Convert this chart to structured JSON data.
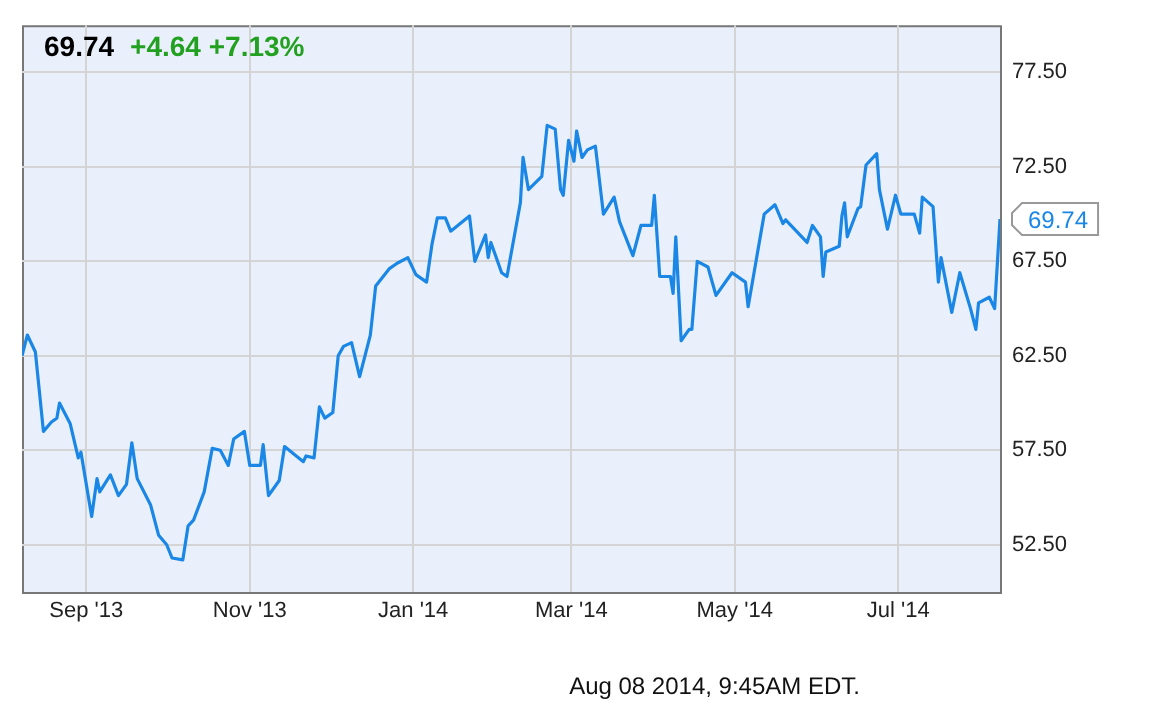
{
  "chart_data": {
    "type": "line",
    "title": "69.74",
    "subtitle": "+4.64 +7.13%",
    "xlim": [
      "2013-08-08",
      "2014-08-08"
    ],
    "xticks": [
      {
        "value": "2013-09-01",
        "label": "Sep '13"
      },
      {
        "value": "2013-11-01",
        "label": "Nov '13"
      },
      {
        "value": "2014-01-01",
        "label": "Jan '14"
      },
      {
        "value": "2014-03-01",
        "label": "Mar '14"
      },
      {
        "value": "2014-05-01",
        "label": "May '14"
      },
      {
        "value": "2014-07-01",
        "label": "Jul '14"
      }
    ],
    "ylim": [
      50,
      80
    ],
    "yticks": [
      {
        "value": 52.5,
        "label": "52.50"
      },
      {
        "value": 57.5,
        "label": "57.50"
      },
      {
        "value": 62.5,
        "label": "62.50"
      },
      {
        "value": 67.5,
        "label": "67.50"
      },
      {
        "value": 72.5,
        "label": "72.50"
      },
      {
        "value": 77.5,
        "label": "77.50"
      }
    ],
    "grid": true,
    "marker": "none",
    "line_style": "solid",
    "annotations": [
      {
        "text": "69.74",
        "x": "2014-08-08",
        "y": 69.74
      },
      "Aug 08 2014, 9:45AM EDT."
    ],
    "series": [
      {
        "color": "#1a87e6",
        "x": [
          "2013-08-08",
          "2013-08-10",
          "2013-08-13",
          "2013-08-16",
          "2013-08-19",
          "2013-08-21",
          "2013-08-22",
          "2013-08-26",
          "2013-08-29",
          "2013-08-30",
          "2013-09-03",
          "2013-09-05",
          "2013-09-06",
          "2013-09-10",
          "2013-09-13",
          "2013-09-16",
          "2013-09-18",
          "2013-09-20",
          "2013-09-25",
          "2013-09-28",
          "2013-10-01",
          "2013-10-03",
          "2013-10-07",
          "2013-10-09",
          "2013-10-11",
          "2013-10-15",
          "2013-10-18",
          "2013-10-21",
          "2013-10-24",
          "2013-10-26",
          "2013-10-30",
          "2013-11-01",
          "2013-11-05",
          "2013-11-06",
          "2013-11-08",
          "2013-11-12",
          "2013-11-14",
          "2013-11-21",
          "2013-11-22",
          "2013-11-25",
          "2013-11-27",
          "2013-11-29",
          "2013-12-02",
          "2013-12-04",
          "2013-12-06",
          "2013-12-09",
          "2013-12-12",
          "2013-12-16",
          "2013-12-18",
          "2013-12-23",
          "2013-12-26",
          "2013-12-30",
          "2014-01-02",
          "2014-01-06",
          "2014-01-08",
          "2014-01-10",
          "2014-01-13",
          "2014-01-15",
          "2014-01-22",
          "2014-01-24",
          "2014-01-28",
          "2014-01-29",
          "2014-01-30",
          "2014-02-03",
          "2014-02-05",
          "2014-02-10",
          "2014-02-11",
          "2014-02-13",
          "2014-02-18",
          "2014-02-20",
          "2014-02-23",
          "2014-02-25",
          "2014-02-26",
          "2014-02-28",
          "2014-03-02",
          "2014-03-03",
          "2014-03-05",
          "2014-03-07",
          "2014-03-10",
          "2014-03-13",
          "2014-03-17",
          "2014-03-19",
          "2014-03-24",
          "2014-03-27",
          "2014-03-31",
          "2014-04-01",
          "2014-04-03",
          "2014-04-07",
          "2014-04-08",
          "2014-04-09",
          "2014-04-11",
          "2014-04-14",
          "2014-04-15",
          "2014-04-17",
          "2014-04-21",
          "2014-04-24",
          "2014-04-28",
          "2014-04-30",
          "2014-05-05",
          "2014-05-06",
          "2014-05-12",
          "2014-05-16",
          "2014-05-19",
          "2014-05-20",
          "2014-05-28",
          "2014-05-30",
          "2014-06-02",
          "2014-06-03",
          "2014-06-04",
          "2014-06-09",
          "2014-06-10",
          "2014-06-11",
          "2014-06-12",
          "2014-06-16",
          "2014-06-17",
          "2014-06-19",
          "2014-06-23",
          "2014-06-24",
          "2014-06-27",
          "2014-06-30",
          "2014-07-02",
          "2014-07-07",
          "2014-07-09",
          "2014-07-10",
          "2014-07-14",
          "2014-07-16",
          "2014-07-17",
          "2014-07-21",
          "2014-07-24",
          "2014-07-28",
          "2014-07-30",
          "2014-07-31",
          "2014-08-04",
          "2014-08-06",
          "2014-08-08"
        ],
        "values": [
          62.5,
          63.6,
          62.7,
          58.5,
          59.0,
          59.2,
          60.0,
          58.9,
          57.1,
          57.4,
          54.0,
          56.0,
          55.3,
          56.2,
          55.1,
          55.7,
          57.9,
          56.0,
          54.6,
          53.0,
          52.5,
          51.8,
          51.7,
          53.5,
          53.8,
          55.3,
          57.6,
          57.5,
          56.7,
          58.1,
          58.5,
          56.7,
          56.7,
          57.8,
          55.1,
          55.9,
          57.7,
          56.9,
          57.2,
          57.1,
          59.8,
          59.2,
          59.5,
          62.5,
          63.0,
          63.2,
          61.4,
          63.6,
          66.2,
          67.1,
          67.4,
          67.7,
          66.8,
          66.4,
          68.4,
          69.8,
          69.8,
          69.1,
          69.9,
          67.5,
          68.9,
          67.7,
          68.5,
          66.9,
          66.7,
          70.6,
          73.0,
          71.3,
          72.0,
          74.7,
          74.5,
          71.3,
          71.0,
          73.9,
          72.8,
          74.4,
          73.0,
          73.4,
          73.6,
          70.0,
          70.9,
          69.6,
          67.8,
          69.4,
          69.4,
          71.0,
          66.7,
          66.7,
          65.8,
          68.8,
          63.3,
          63.9,
          63.9,
          67.5,
          67.2,
          65.7,
          66.5,
          66.9,
          66.4,
          65.1,
          70.0,
          70.5,
          69.5,
          69.7,
          68.5,
          69.4,
          68.8,
          66.7,
          68.0,
          68.3,
          69.9,
          70.6,
          68.8,
          70.3,
          70.4,
          72.6,
          73.2,
          71.3,
          69.2,
          71.0,
          70.0,
          70.0,
          69.0,
          70.9,
          70.4,
          66.4,
          67.7,
          64.8,
          66.9,
          65.0,
          63.9,
          65.3,
          65.6,
          65.0,
          69.74
        ]
      }
    ]
  }
}
